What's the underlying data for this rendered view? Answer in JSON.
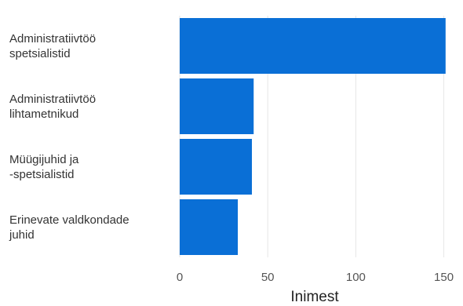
{
  "chart_data": {
    "type": "bar",
    "orientation": "horizontal",
    "categories": [
      [
        "Administratiivtöö",
        "spetsialistid"
      ],
      [
        "Administratiivtöö",
        "lihtametnikud"
      ],
      [
        "Müügijuhid ja",
        "-spetsialistid"
      ],
      [
        "Erinevate valdkondade",
        "juhid"
      ]
    ],
    "values": [
      151,
      42,
      41,
      33
    ],
    "xlabel": "Inimest",
    "ylabel": "",
    "xlim": [
      0,
      160
    ],
    "xticks": [
      0,
      50,
      100,
      150
    ],
    "xtick_labels": [
      "0",
      "50",
      "100",
      "150"
    ],
    "grid": true,
    "colors": {
      "bar": "#0a6fd6",
      "grid": "#e6e6e6"
    }
  }
}
